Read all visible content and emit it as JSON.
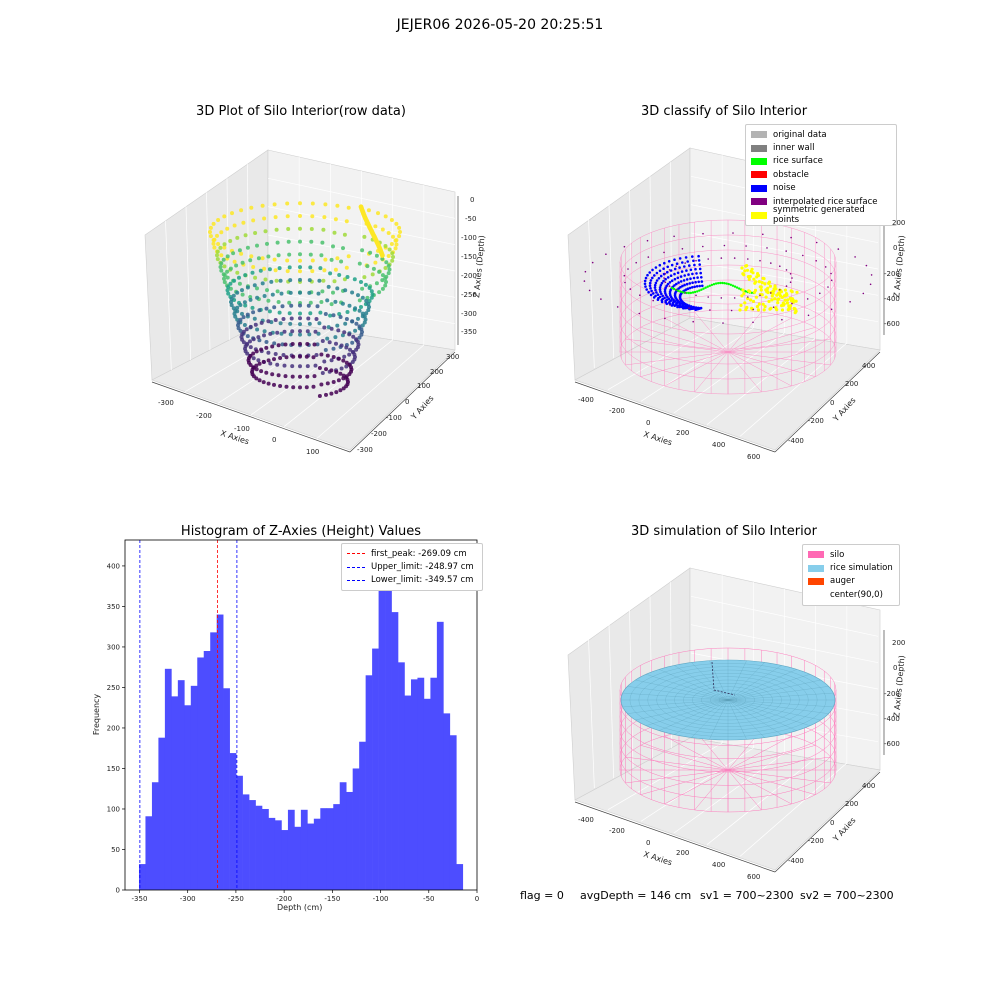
{
  "suptitle": "JEJER06 2026-05-20 20:25:51",
  "panels": {
    "raw": {
      "title": "3D Plot of Silo Interior(row data)",
      "xlabel": "X Axies",
      "ylabel": "Y Axies",
      "zlabel": "Z Axies (Depth)",
      "xticks": [
        "-300",
        "-200",
        "-100",
        "0",
        "100"
      ],
      "yticks": [
        "-300",
        "-200",
        "-100",
        "0",
        "100",
        "200",
        "300"
      ],
      "zticks": [
        "0",
        "-50",
        "-100",
        "-150",
        "-200",
        "-250",
        "-300",
        "-350"
      ]
    },
    "classify": {
      "title": "3D classify of Silo Interior",
      "xlabel": "X Axies",
      "ylabel": "Y Axies",
      "zlabel": "Z Axies (Depth)",
      "xticks": [
        "-400",
        "-200",
        "0",
        "200",
        "400",
        "600"
      ],
      "yticks": [
        "-400",
        "-200",
        "0",
        "200",
        "400"
      ],
      "zticks": [
        "200",
        "0",
        "-200",
        "-400",
        "-600"
      ],
      "legend": [
        {
          "label": "original data",
          "color": "#b3b3b3"
        },
        {
          "label": "inner wall",
          "color": "#808080"
        },
        {
          "label": "rice surface",
          "color": "#00ff00"
        },
        {
          "label": "obstacle",
          "color": "#ff0000"
        },
        {
          "label": "noise",
          "color": "#0000ff"
        },
        {
          "label": "interpolated rice surface",
          "color": "#800080"
        },
        {
          "label": "symmetric generated points",
          "color": "#ffff00"
        }
      ]
    },
    "histogram": {
      "title": "Histogram of Z-Axies (Height) Values",
      "xlabel": "Depth (cm)",
      "ylabel": "Frequency",
      "legend": [
        {
          "label": "first_peak: -269.09 cm",
          "color": "#ff0000"
        },
        {
          "label": "Upper_limit: -248.97 cm",
          "color": "#0000ff"
        },
        {
          "label": "Lower_limit: -349.57 cm",
          "color": "#0000ff"
        }
      ]
    },
    "simulation": {
      "title": "3D simulation of Silo Interior",
      "xlabel": "X Axies",
      "ylabel": "Y Axies",
      "zlabel": "Z Axies (Depth)",
      "xticks": [
        "-400",
        "-200",
        "0",
        "200",
        "400",
        "600"
      ],
      "yticks": [
        "-400",
        "-200",
        "0",
        "200",
        "400"
      ],
      "zticks": [
        "200",
        "0",
        "-200",
        "-400",
        "-600"
      ],
      "legend": [
        {
          "label": "silo",
          "color": "#ff69b4"
        },
        {
          "label": "rice simulation",
          "color": "#87ceeb"
        },
        {
          "label": "auger",
          "color": "#ff4500"
        },
        {
          "label": "center(90,0)",
          "color": ""
        }
      ]
    }
  },
  "footer": {
    "flag": "flag = 0",
    "avg": "avgDepth = 146 cm",
    "sv1": "sv1 = 700~2300",
    "sv2": "sv2 = 700~2300"
  },
  "colors": {
    "bar": "#4d4dff",
    "silo": "#ff69b4",
    "rice": "#87ceeb",
    "pane": "#f2f2f2"
  },
  "chart_data": [
    {
      "type": "histogram",
      "title": "Histogram of Z-Axies (Height) Values",
      "xlabel": "Depth (cm)",
      "ylabel": "Frequency",
      "xlim": [
        -365,
        0
      ],
      "ylim": [
        0,
        432
      ],
      "xticks": [
        -350,
        -300,
        -250,
        -200,
        -150,
        -100,
        -50,
        0
      ],
      "yticks": [
        0,
        50,
        100,
        150,
        200,
        250,
        300,
        350,
        400
      ],
      "bin_start": -350.5,
      "bin_width": 6.715,
      "values": [
        32,
        91,
        133,
        188,
        273,
        239,
        259,
        228,
        252,
        287,
        295,
        318,
        340,
        249,
        169,
        141,
        118,
        111,
        104,
        100,
        89,
        86,
        74,
        99,
        78,
        99,
        82,
        88,
        101,
        101,
        106,
        133,
        121,
        150,
        183,
        265,
        298,
        372,
        390,
        343,
        281,
        240,
        260,
        262,
        236,
        262,
        331,
        218,
        191,
        32
      ],
      "vlines": [
        {
          "x": -269.09,
          "color": "#ff0000",
          "label": "first_peak: -269.09 cm"
        },
        {
          "x": -248.97,
          "color": "#0000ff",
          "label": "Upper_limit: -248.97 cm"
        },
        {
          "x": -349.57,
          "color": "#0000ff",
          "label": "Lower_limit: -349.57 cm"
        }
      ]
    }
  ]
}
